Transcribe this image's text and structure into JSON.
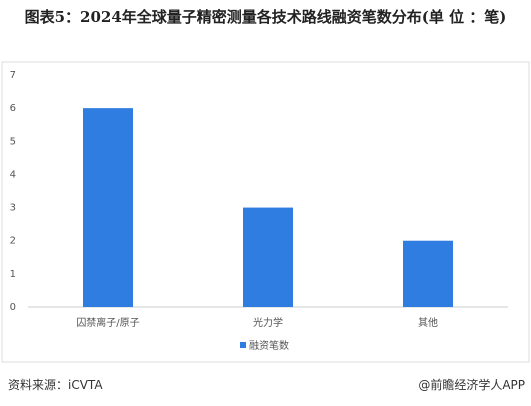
{
  "chart_data": {
    "type": "bar",
    "title": "图表5：2024年全球量子精密测量各技术路线融资笔数分布(单 位 ：笔)",
    "categories": [
      "囚禁离子/原子",
      "光力学",
      "其他"
    ],
    "series": [
      {
        "name": "融资笔数",
        "color": "#2f7de1",
        "values": [
          6,
          3,
          2
        ]
      }
    ],
    "ylim": [
      0,
      7
    ],
    "yticks": [
      0,
      1,
      2,
      3,
      4,
      5,
      6,
      7
    ],
    "grid": false
  },
  "footer": {
    "source": "资料来源：iCVTA",
    "brand": "@前瞻经济学人APP"
  }
}
